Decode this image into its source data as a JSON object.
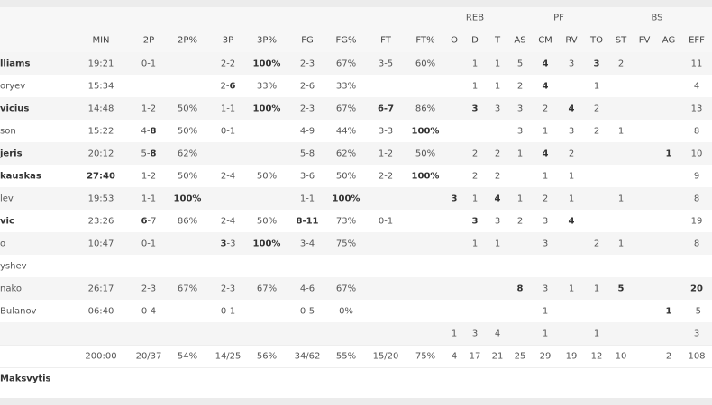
{
  "header": {
    "groups": [
      "REB",
      "PF",
      "BS"
    ],
    "columns": [
      null,
      "MIN",
      "2P",
      "2P%",
      "3P",
      "3P%",
      "FG",
      "FG%",
      "FT",
      "FT%",
      "O",
      "D",
      "T",
      "AS",
      "CM",
      "RV",
      "TO",
      "ST",
      "FV",
      "AG",
      "EFF"
    ]
  },
  "rows": [
    {
      "cells": [
        "lliams",
        "19:21",
        "0-1",
        null,
        "2-2",
        "100%",
        "2-3",
        "67%",
        "3-5",
        "60%",
        null,
        "1",
        "1",
        "5",
        "4",
        "3",
        "3",
        "2",
        null,
        null,
        "11"
      ],
      "bold": [
        0,
        5,
        14,
        16
      ]
    },
    {
      "cells": [
        "oryev",
        "15:34",
        null,
        null,
        {
          "text": [
            "2-",
            "6"
          ],
          "bold": [
            1
          ]
        },
        "33%",
        "2-6",
        "33%",
        null,
        null,
        null,
        "1",
        "1",
        "2",
        "4",
        null,
        "1",
        null,
        null,
        null,
        "4"
      ],
      "bold": [
        14
      ]
    },
    {
      "cells": [
        "vicius",
        "14:48",
        "1-2",
        "50%",
        "1-1",
        "100%",
        "2-3",
        "67%",
        "6-7",
        "86%",
        null,
        "3",
        "3",
        "3",
        "2",
        "4",
        "2",
        null,
        null,
        null,
        "13"
      ],
      "bold": [
        0,
        5,
        8,
        11,
        15
      ]
    },
    {
      "cells": [
        "son",
        "15:22",
        {
          "text": [
            "4-",
            "8"
          ],
          "bold": [
            1
          ]
        },
        "50%",
        "0-1",
        null,
        "4-9",
        "44%",
        "3-3",
        "100%",
        null,
        null,
        null,
        "3",
        "1",
        "3",
        "2",
        "1",
        null,
        null,
        "8"
      ],
      "bold": [
        9
      ]
    },
    {
      "cells": [
        "jeris",
        "20:12",
        {
          "text": [
            "5-",
            "8"
          ],
          "bold": [
            1
          ]
        },
        "62%",
        null,
        null,
        "5-8",
        "62%",
        "1-2",
        "50%",
        null,
        "2",
        "2",
        "1",
        "4",
        "2",
        null,
        null,
        null,
        "1",
        "10"
      ],
      "bold": [
        0,
        14,
        19
      ]
    },
    {
      "cells": [
        "kauskas",
        "27:40",
        "1-2",
        "50%",
        "2-4",
        "50%",
        "3-6",
        "50%",
        "2-2",
        "100%",
        null,
        "2",
        "2",
        null,
        "1",
        "1",
        null,
        null,
        null,
        null,
        "9"
      ],
      "bold": [
        0,
        1,
        9
      ]
    },
    {
      "cells": [
        "lev",
        "19:53",
        "1-1",
        "100%",
        null,
        null,
        "1-1",
        "100%",
        null,
        null,
        "3",
        "1",
        "4",
        "1",
        "2",
        "1",
        null,
        "1",
        null,
        null,
        "8"
      ],
      "bold": [
        3,
        7,
        10,
        12
      ]
    },
    {
      "cells": [
        "vic",
        "23:26",
        {
          "text": [
            "6",
            "-7"
          ],
          "bold": [
            0
          ]
        },
        "86%",
        "2-4",
        "50%",
        "8-11",
        "73%",
        "0-1",
        null,
        null,
        "3",
        "3",
        "2",
        "3",
        "4",
        null,
        null,
        null,
        null,
        "19"
      ],
      "bold": [
        0,
        6,
        11,
        15
      ]
    },
    {
      "cells": [
        "o",
        "10:47",
        "0-1",
        null,
        {
          "text": [
            "3",
            "-3"
          ],
          "bold": [
            0
          ]
        },
        "100%",
        "3-4",
        "75%",
        null,
        null,
        null,
        "1",
        "1",
        null,
        "3",
        null,
        "2",
        "1",
        null,
        null,
        "8"
      ],
      "bold": [
        5
      ]
    },
    {
      "cells": [
        "yshev",
        "-",
        null,
        null,
        null,
        null,
        null,
        null,
        null,
        null,
        null,
        null,
        null,
        null,
        null,
        null,
        null,
        null,
        null,
        null,
        null
      ],
      "bold": []
    },
    {
      "cells": [
        "nako",
        "26:17",
        "2-3",
        "67%",
        "2-3",
        "67%",
        "4-6",
        "67%",
        null,
        null,
        null,
        null,
        null,
        "8",
        "3",
        "1",
        "1",
        "5",
        null,
        null,
        "20"
      ],
      "bold": [
        13,
        17,
        20
      ]
    },
    {
      "cells": [
        " Bulanov",
        "06:40",
        "0-4",
        null,
        "0-1",
        null,
        "0-5",
        "0%",
        null,
        null,
        null,
        null,
        null,
        null,
        "1",
        null,
        null,
        null,
        null,
        "1",
        "-5"
      ],
      "bold": [
        19
      ]
    },
    {
      "cells": [
        null,
        null,
        null,
        null,
        null,
        null,
        null,
        null,
        null,
        null,
        "1",
        "3",
        "4",
        null,
        "1",
        null,
        "1",
        null,
        null,
        null,
        "3"
      ],
      "bold": []
    },
    {
      "cells": [
        null,
        "200:00",
        "20/37",
        "54%",
        "14/25",
        "56%",
        "34/62",
        "55%",
        "15/20",
        "75%",
        "4",
        "17",
        "21",
        "25",
        "29",
        "19",
        "12",
        "10",
        null,
        "2",
        "108"
      ],
      "bold": []
    },
    {
      "cells": [
        "Maksvytis",
        null,
        null,
        null,
        null,
        null,
        null,
        null,
        null,
        null,
        null,
        null,
        null,
        null,
        null,
        null,
        null,
        null,
        null,
        null,
        null
      ],
      "bold": [
        0
      ]
    }
  ]
}
